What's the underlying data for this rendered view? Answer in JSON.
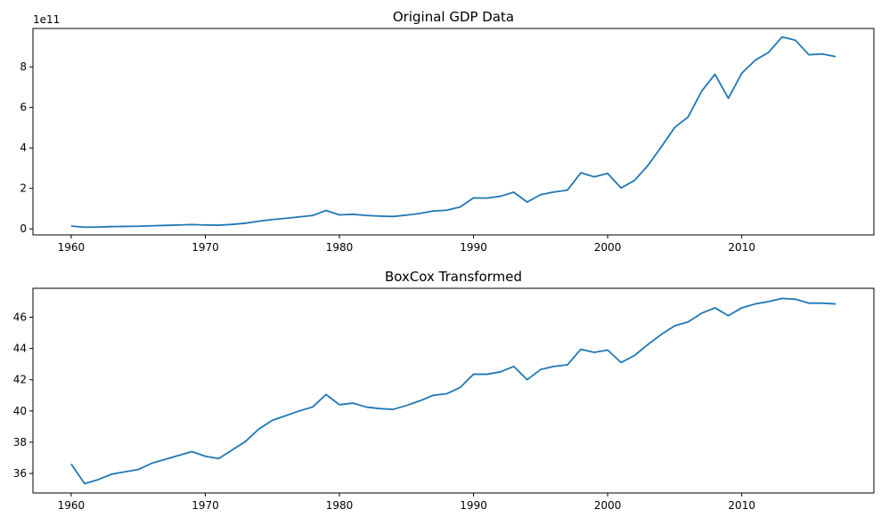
{
  "chart_data": [
    {
      "type": "line",
      "title": "Original GDP Data",
      "xlabel": "",
      "ylabel": "",
      "y_scale_label": "1e11",
      "xlim": [
        1957.15,
        2019.85
      ],
      "ylim": [
        -0.3,
        9.9
      ],
      "x_ticks": [
        1960,
        1970,
        1980,
        1990,
        2000,
        2010
      ],
      "y_ticks": [
        0,
        2,
        4,
        6,
        8
      ],
      "grid": false,
      "color": "#1f77b4",
      "series": [
        {
          "x": [
            1960,
            1961,
            1962,
            1963,
            1964,
            1965,
            1966,
            1967,
            1968,
            1969,
            1970,
            1971,
            1972,
            1973,
            1974,
            1975,
            1976,
            1977,
            1978,
            1979,
            1980,
            1981,
            1982,
            1983,
            1984,
            1985,
            1986,
            1987,
            1988,
            1989,
            1990,
            1991,
            1992,
            1993,
            1994,
            1995,
            1996,
            1997,
            1998,
            1999,
            2000,
            2001,
            2002,
            2003,
            2004,
            2005,
            2006,
            2007,
            2008,
            2009,
            2010,
            2011,
            2012,
            2013,
            2014,
            2015,
            2016,
            2017
          ],
          "values": [
            0.14,
            0.08,
            0.09,
            0.11,
            0.12,
            0.13,
            0.15,
            0.17,
            0.19,
            0.21,
            0.19,
            0.18,
            0.22,
            0.28,
            0.38,
            0.46,
            0.52,
            0.59,
            0.66,
            0.91,
            0.69,
            0.72,
            0.66,
            0.63,
            0.61,
            0.68,
            0.76,
            0.88,
            0.92,
            1.08,
            1.53,
            1.52,
            1.61,
            1.81,
            1.32,
            1.69,
            1.82,
            1.91,
            2.77,
            2.57,
            2.74,
            2.02,
            2.39,
            3.13,
            4.05,
            5.01,
            5.53,
            6.79,
            7.64,
            6.45,
            7.69,
            8.33,
            8.72,
            9.48,
            9.32,
            8.6,
            8.64,
            8.51
          ]
        }
      ]
    },
    {
      "type": "line",
      "title": "BoxCox Transformed",
      "xlabel": "",
      "ylabel": "",
      "xlim": [
        1957.15,
        2019.85
      ],
      "ylim": [
        34.75,
        47.85
      ],
      "x_ticks": [
        1960,
        1970,
        1980,
        1990,
        2000,
        2010
      ],
      "y_ticks": [
        36,
        38,
        40,
        42,
        44,
        46
      ],
      "grid": false,
      "color": "#1f77b4",
      "series": [
        {
          "x": [
            1960,
            1961,
            1962,
            1963,
            1964,
            1965,
            1966,
            1967,
            1968,
            1969,
            1970,
            1971,
            1972,
            1973,
            1974,
            1975,
            1976,
            1977,
            1978,
            1979,
            1980,
            1981,
            1982,
            1983,
            1984,
            1985,
            1986,
            1987,
            1988,
            1989,
            1990,
            1991,
            1992,
            1993,
            1994,
            1995,
            1996,
            1997,
            1998,
            1999,
            2000,
            2001,
            2002,
            2003,
            2004,
            2005,
            2006,
            2007,
            2008,
            2009,
            2010,
            2011,
            2012,
            2013,
            2014,
            2015,
            2016,
            2017
          ],
          "values": [
            36.6,
            35.35,
            35.6,
            35.95,
            36.1,
            36.25,
            36.65,
            36.9,
            37.15,
            37.4,
            37.1,
            36.95,
            37.5,
            38.05,
            38.85,
            39.4,
            39.7,
            40.0,
            40.25,
            41.05,
            40.4,
            40.5,
            40.25,
            40.15,
            40.1,
            40.35,
            40.65,
            41.0,
            41.1,
            41.5,
            42.35,
            42.35,
            42.5,
            42.85,
            42.0,
            42.65,
            42.85,
            42.95,
            43.95,
            43.75,
            43.9,
            43.1,
            43.55,
            44.25,
            44.9,
            45.45,
            45.7,
            46.25,
            46.6,
            46.1,
            46.6,
            46.85,
            47.0,
            47.2,
            47.15,
            46.9,
            46.9,
            46.85
          ]
        }
      ]
    }
  ]
}
